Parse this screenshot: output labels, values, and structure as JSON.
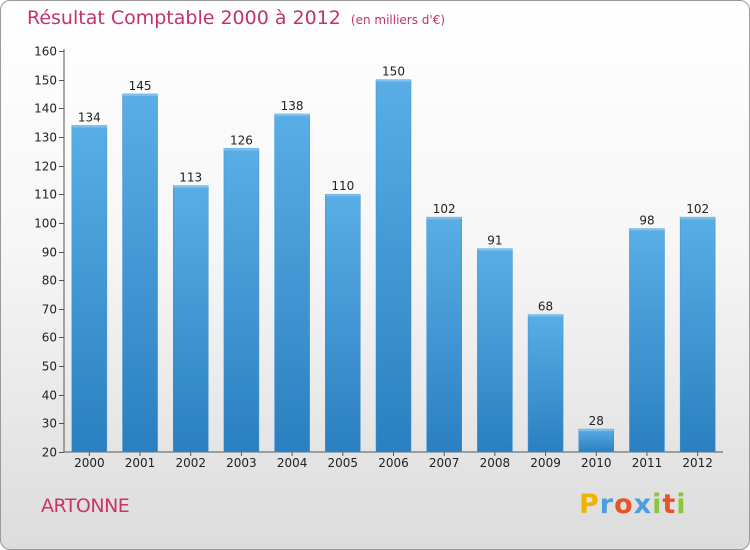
{
  "chart_data": {
    "type": "bar",
    "title": "Résultat Comptable 2000 à 2012",
    "unit_note": "(en milliers d'€)",
    "xlabel": "",
    "ylabel": "",
    "categories": [
      "2000",
      "2001",
      "2002",
      "2003",
      "2004",
      "2005",
      "2006",
      "2007",
      "2008",
      "2009",
      "2010",
      "2011",
      "2012"
    ],
    "values": [
      134,
      145,
      113,
      126,
      138,
      110,
      150,
      102,
      91,
      68,
      28,
      98,
      102
    ],
    "ylim": [
      20,
      160
    ],
    "yticks": [
      20,
      30,
      40,
      50,
      60,
      70,
      80,
      90,
      100,
      110,
      120,
      130,
      140,
      150,
      160
    ],
    "bar_color": "#4a9fdc",
    "grid": false,
    "data_labels": true
  },
  "footer": {
    "town": "ARTONNE",
    "logo": {
      "letters": [
        "P",
        "r",
        "o",
        "x",
        "i",
        "t",
        "i"
      ],
      "colors": [
        "#f0b400",
        "#4a9fdc",
        "#e8542a",
        "#4a9fdc",
        "#8cc63f",
        "#e8542a",
        "#8cc63f"
      ]
    }
  }
}
